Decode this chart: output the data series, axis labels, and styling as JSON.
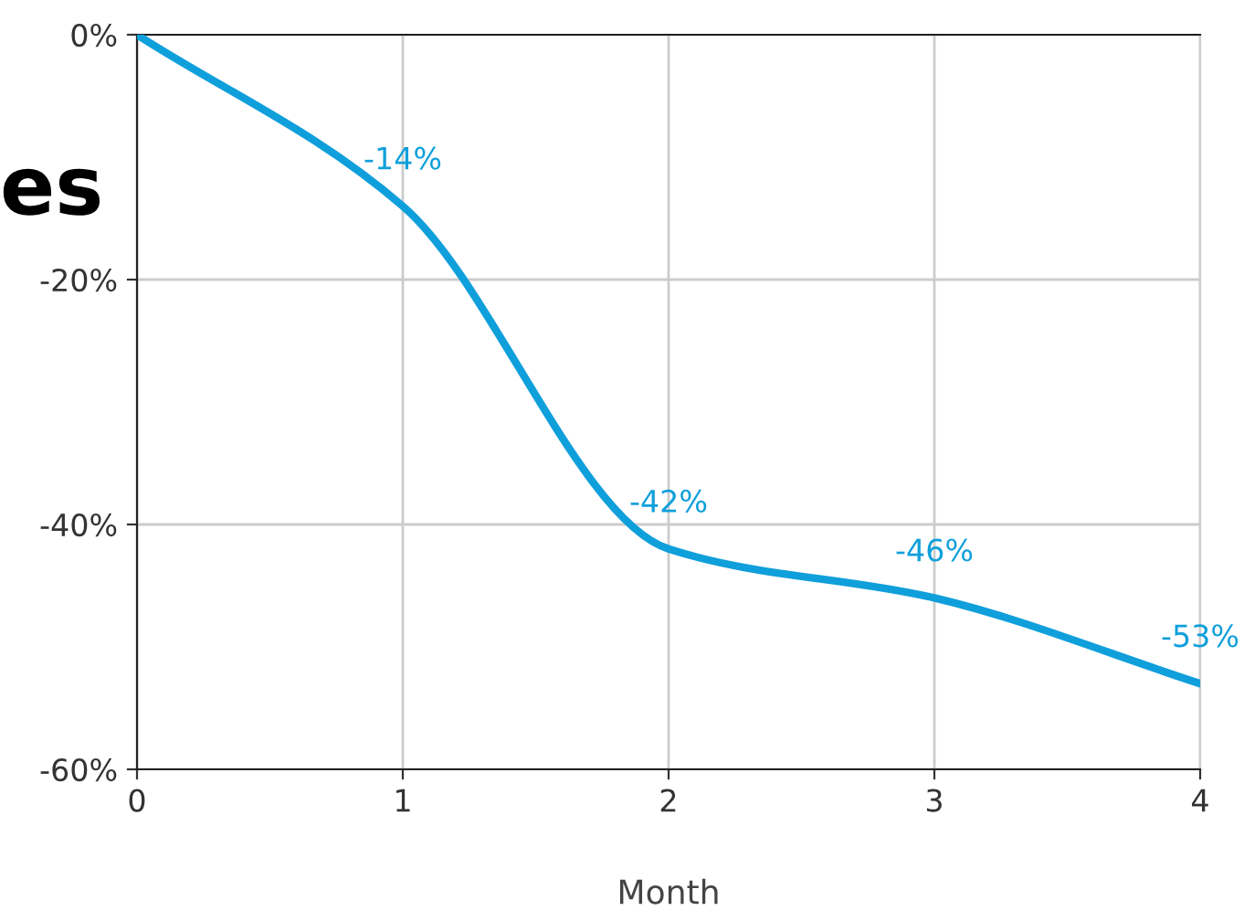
{
  "chart_data": {
    "type": "line",
    "xlabel": "Month",
    "annotations": [
      "es"
    ],
    "x": [
      0,
      1,
      2,
      3,
      4
    ],
    "series": [
      {
        "color": "#0f9fdb",
        "values": [
          0,
          -14,
          -42,
          -46,
          -53
        ],
        "value_labels": [
          null,
          "-14%",
          "-42%",
          "-46%",
          "-53%"
        ]
      }
    ],
    "xlim": [
      0,
      4
    ],
    "xticks": [
      0,
      1,
      2,
      3,
      4
    ],
    "ylim": [
      -60,
      0
    ],
    "yticks": [
      {
        "value": -60,
        "label": "-60%"
      },
      {
        "value": -40,
        "label": "-40%"
      },
      {
        "value": -20,
        "label": "-20%"
      },
      {
        "value": 0,
        "label": "0%"
      }
    ],
    "grid": true,
    "marker": "none",
    "line_style": "solid"
  }
}
